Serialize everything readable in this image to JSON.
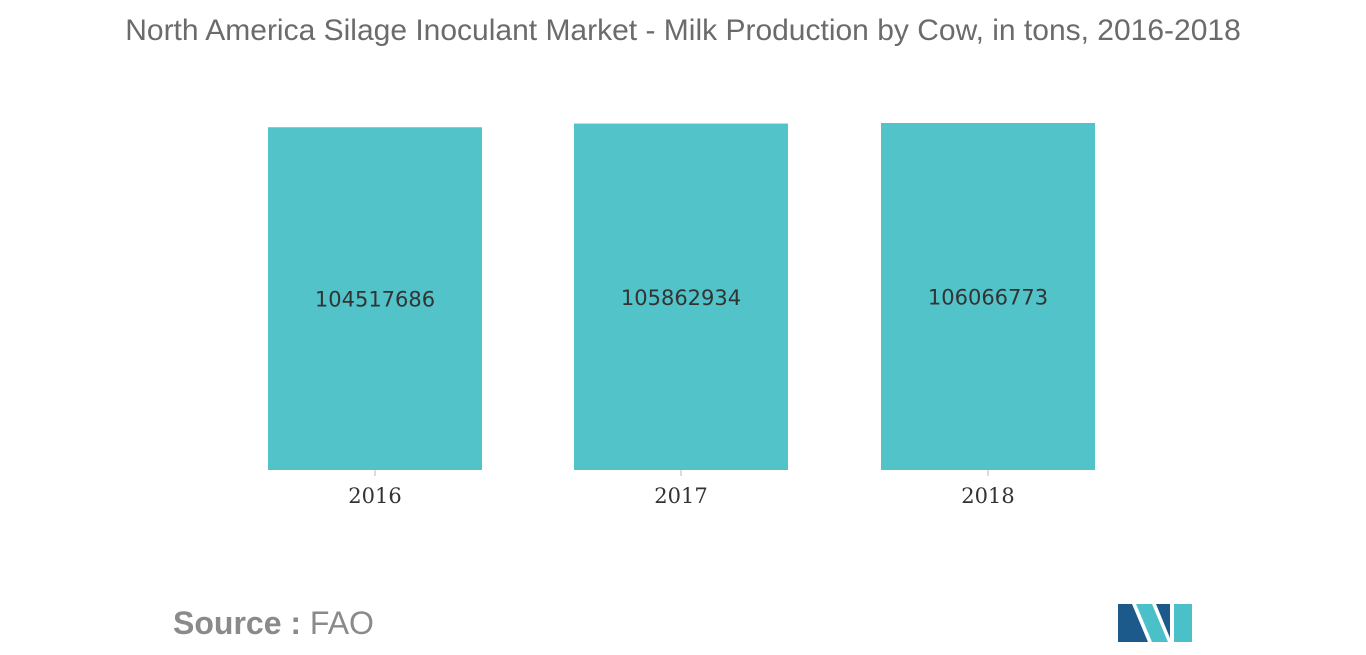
{
  "chart_data": {
    "type": "bar",
    "title": "North America Silage Inoculant Market - Milk Production by Cow, in tons, 2016-2018",
    "categories": [
      "2016",
      "2017",
      "2018"
    ],
    "values": [
      104517686,
      105862934,
      106066773
    ],
    "data_labels": [
      "104517686",
      "105862934",
      "106066773"
    ],
    "xlabel": "",
    "ylabel": "",
    "ylim": [
      0,
      106066773
    ],
    "grid": false,
    "legend": "none",
    "bar_color": "#51C3C9"
  },
  "source": {
    "label": "Source :",
    "value": "FAO"
  },
  "colors": {
    "title": "#6b6b6b",
    "axis_text": "#333333",
    "source": "#8a8a8a",
    "logo_dark": "#1d5a8c",
    "logo_light": "#4cc0c8"
  }
}
